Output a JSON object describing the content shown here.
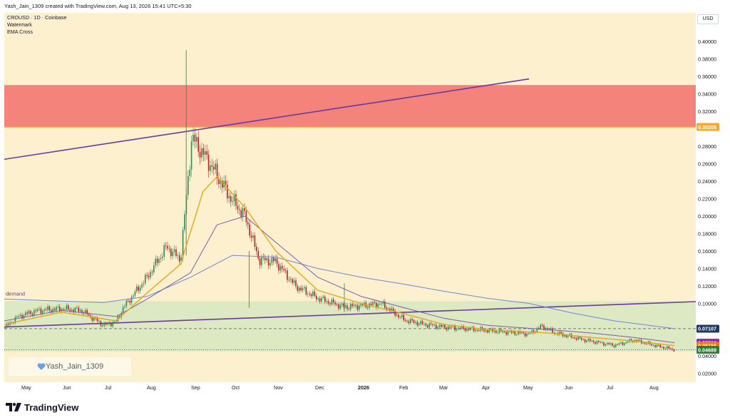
{
  "header": {
    "caption": "Yash_Jain_1309 created with TradingView.com, Aug 13, 2026 15:41 UTC+5:30"
  },
  "legend": {
    "symbol_line": "CROUSD · 1D · Coinbase",
    "indicator_1": "Watermark",
    "indicator_2": "EMA Cross"
  },
  "price_axis": {
    "currency": "USD",
    "ticks": [
      "0.40000",
      "0.38000",
      "0.36000",
      "0.34000",
      "0.32000",
      "0.30205",
      "0.28000",
      "0.26000",
      "0.24000",
      "0.22000",
      "0.20000",
      "0.18000",
      "0.16000",
      "0.14000",
      "0.12000",
      "0.10000",
      "0.07107",
      "0.05512",
      "0.05156",
      "0.04689",
      "0.04000",
      "0.02000"
    ],
    "markers": [
      {
        "label": "0.30205",
        "color": "#f9a825"
      },
      {
        "label": "0.07107",
        "color": "#1e3a5f"
      },
      {
        "label": "0.05512",
        "color": "#9c27b0"
      },
      {
        "label": "0.05156",
        "color": "#f57c00"
      },
      {
        "label": "0.04689",
        "color": "#2e7d32"
      }
    ]
  },
  "time_axis": {
    "labels": [
      "May",
      "Jun",
      "Jul",
      "Aug",
      "Sep",
      "Oct",
      "Nov",
      "Dec",
      "2026",
      "Feb",
      "Mar",
      "Apr",
      "May",
      "Jun",
      "Jul",
      "Aug"
    ]
  },
  "drawings": {
    "demand_label": "demand",
    "watermark_text": "Yash_Jain_1309"
  },
  "brand": {
    "name": "TradingView"
  },
  "colors": {
    "background": "#fdf0cf",
    "supply_zone": "#f4837b",
    "demand_zone": "#d6e8bf",
    "up_candle": "#2e8b57",
    "down_candle": "#b22222",
    "ema_fast": "#e6a817",
    "ema_slow": "#7b5ea7",
    "ma_long": "#6f86d6",
    "trendline": "#6a3aa0"
  },
  "chart_data": {
    "type": "candlestick",
    "symbol": "CROUSD",
    "interval": "1D",
    "exchange": "Coinbase",
    "ylim": [
      0.012,
      0.418
    ],
    "x_range": [
      "2025-04-21",
      "2026-09-05"
    ],
    "supply_zone": {
      "from": 0.302,
      "to": 0.35
    },
    "demand_zone": {
      "from": 0.045,
      "to": 0.1025
    },
    "resistance_line": {
      "from": [
        "2025-04-21",
        0.265
      ],
      "to": [
        "2026-05-01",
        0.357
      ]
    },
    "support_line": {
      "from": [
        "2025-04-21",
        0.073
      ],
      "to": [
        "2026-09-05",
        0.1025
      ]
    },
    "dashed_level": 0.0711,
    "dotted_level": 0.0469,
    "price_path": [
      [
        "2025-04-21",
        0.072
      ],
      [
        "2025-05-01",
        0.085
      ],
      [
        "2025-05-15",
        0.092
      ],
      [
        "2025-06-01",
        0.094
      ],
      [
        "2025-06-15",
        0.092
      ],
      [
        "2025-07-01",
        0.075
      ],
      [
        "2025-07-10",
        0.079
      ],
      [
        "2025-07-15",
        0.095
      ],
      [
        "2025-08-01",
        0.13
      ],
      [
        "2025-08-15",
        0.165
      ],
      [
        "2025-08-25",
        0.15
      ],
      [
        "2025-09-02",
        0.29
      ],
      [
        "2025-09-15",
        0.26
      ],
      [
        "2025-09-30",
        0.22
      ],
      [
        "2025-10-10",
        0.2
      ],
      [
        "2025-10-20",
        0.15
      ],
      [
        "2025-11-01",
        0.148
      ],
      [
        "2025-11-15",
        0.12
      ],
      [
        "2025-12-01",
        0.106
      ],
      [
        "2025-12-20",
        0.096
      ],
      [
        "2026-01-05",
        0.098
      ],
      [
        "2026-01-15",
        0.1
      ],
      [
        "2026-02-01",
        0.081
      ],
      [
        "2026-02-15",
        0.076
      ],
      [
        "2026-03-01",
        0.073
      ],
      [
        "2026-04-01",
        0.069
      ],
      [
        "2026-05-01",
        0.065
      ],
      [
        "2026-05-10",
        0.074
      ],
      [
        "2026-05-20",
        0.066
      ],
      [
        "2026-06-10",
        0.058
      ],
      [
        "2026-07-01",
        0.052
      ],
      [
        "2026-07-15",
        0.058
      ],
      [
        "2026-08-01",
        0.051
      ],
      [
        "2026-08-13",
        0.047
      ]
    ],
    "ema_fast": [
      [
        "2025-04-21",
        0.076
      ],
      [
        "2025-06-01",
        0.09
      ],
      [
        "2025-07-10",
        0.08
      ],
      [
        "2025-08-01",
        0.112
      ],
      [
        "2025-08-25",
        0.145
      ],
      [
        "2025-09-10",
        0.228
      ],
      [
        "2025-09-20",
        0.245
      ],
      [
        "2025-10-10",
        0.21
      ],
      [
        "2025-11-01",
        0.16
      ],
      [
        "2025-12-01",
        0.115
      ],
      [
        "2026-01-01",
        0.1
      ],
      [
        "2026-02-01",
        0.088
      ],
      [
        "2026-03-01",
        0.076
      ],
      [
        "2026-04-01",
        0.07
      ],
      [
        "2026-05-15",
        0.066
      ],
      [
        "2026-06-15",
        0.061
      ],
      [
        "2026-07-15",
        0.057
      ],
      [
        "2026-08-13",
        0.0516
      ]
    ],
    "ema_slow": [
      [
        "2025-04-21",
        0.08
      ],
      [
        "2025-06-01",
        0.092
      ],
      [
        "2025-07-10",
        0.085
      ],
      [
        "2025-08-01",
        0.105
      ],
      [
        "2025-09-01",
        0.135
      ],
      [
        "2025-09-20",
        0.19
      ],
      [
        "2025-10-10",
        0.2
      ],
      [
        "2025-11-01",
        0.17
      ],
      [
        "2025-12-01",
        0.13
      ],
      [
        "2026-01-01",
        0.108
      ],
      [
        "2026-02-01",
        0.095
      ],
      [
        "2026-03-01",
        0.083
      ],
      [
        "2026-04-01",
        0.075
      ],
      [
        "2026-05-15",
        0.07
      ],
      [
        "2026-06-15",
        0.066
      ],
      [
        "2026-07-15",
        0.061
      ],
      [
        "2026-08-13",
        0.0551
      ]
    ],
    "ma_long": [
      [
        "2025-04-21",
        0.105
      ],
      [
        "2025-07-01",
        0.101
      ],
      [
        "2025-08-01",
        0.108
      ],
      [
        "2025-09-01",
        0.13
      ],
      [
        "2025-10-01",
        0.155
      ],
      [
        "2025-11-01",
        0.153
      ],
      [
        "2025-12-01",
        0.14
      ],
      [
        "2026-01-01",
        0.13
      ],
      [
        "2026-02-01",
        0.122
      ],
      [
        "2026-03-01",
        0.114
      ],
      [
        "2026-04-01",
        0.106
      ],
      [
        "2026-05-01",
        0.1
      ],
      [
        "2026-06-01",
        0.089
      ],
      [
        "2026-07-01",
        0.08
      ],
      [
        "2026-08-13",
        0.0711
      ]
    ],
    "spikes": [
      {
        "date": "2025-08-29",
        "high": 0.39,
        "low": 0.155
      },
      {
        "date": "2025-10-13",
        "high": 0.16,
        "low": 0.095
      },
      {
        "date": "2025-12-20",
        "high": 0.123,
        "low": 0.09
      }
    ]
  }
}
